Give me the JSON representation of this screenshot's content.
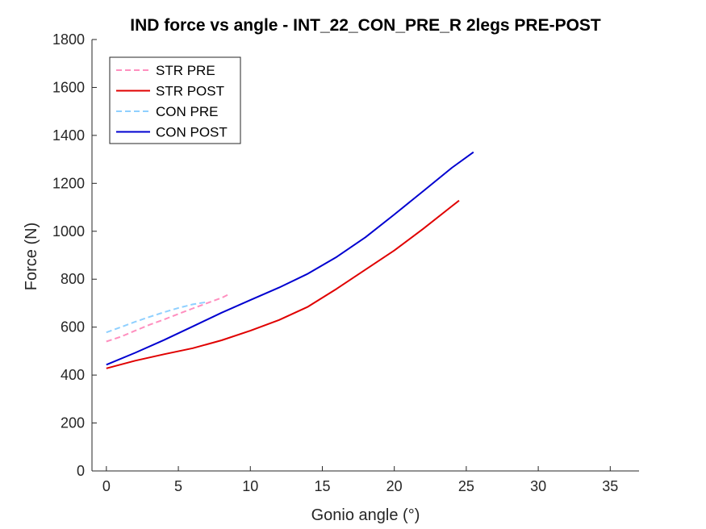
{
  "chart_data": {
    "type": "line",
    "title": "IND force vs angle - INT_22_CON_PRE_R 2legs PRE-POST",
    "xlabel": "Gonio angle (°)",
    "ylabel": "Force (N)",
    "xlim": [
      -1,
      37
    ],
    "ylim": [
      0,
      1800
    ],
    "xticks": [
      0,
      5,
      10,
      15,
      20,
      25,
      30,
      35
    ],
    "yticks": [
      0,
      200,
      400,
      600,
      800,
      1000,
      1200,
      1400,
      1600,
      1800
    ],
    "xtick_labels": [
      "0",
      "5",
      "10",
      "15",
      "20",
      "25",
      "30",
      "35"
    ],
    "ytick_labels": [
      "0",
      "200",
      "400",
      "600",
      "800",
      "1000",
      "1200",
      "1400",
      "1600",
      "1800"
    ],
    "grid": false,
    "legend_position": "top-left",
    "series": [
      {
        "name": "STR PRE",
        "color": "#ff8fbf",
        "style": "dashed",
        "x": [
          0,
          1,
          2,
          3,
          4,
          5,
          6,
          7,
          8,
          8.6
        ],
        "y": [
          540,
          560,
          585,
          610,
          632,
          655,
          678,
          700,
          722,
          740
        ]
      },
      {
        "name": "STR POST",
        "color": "#e00000",
        "style": "solid",
        "x": [
          0,
          2,
          4,
          6,
          8,
          10,
          12,
          14,
          16,
          18,
          20,
          22,
          24,
          24.5
        ],
        "y": [
          428,
          460,
          487,
          512,
          545,
          585,
          630,
          685,
          760,
          840,
          920,
          1010,
          1105,
          1128
        ]
      },
      {
        "name": "CON PRE",
        "color": "#8fd0ff",
        "style": "dashed",
        "x": [
          0,
          1,
          2,
          3,
          4,
          5,
          6,
          7
        ],
        "y": [
          578,
          600,
          622,
          643,
          662,
          680,
          695,
          705
        ]
      },
      {
        "name": "CON POST",
        "color": "#0000d0",
        "style": "solid",
        "x": [
          0,
          2,
          4,
          6,
          8,
          10,
          12,
          14,
          16,
          18,
          20,
          22,
          24,
          25.5
        ],
        "y": [
          443,
          493,
          546,
          603,
          660,
          713,
          765,
          823,
          893,
          975,
          1070,
          1167,
          1265,
          1330
        ]
      }
    ],
    "colors": {
      "axis": "#262626",
      "legend_border": "#262626",
      "background": "#ffffff"
    }
  }
}
